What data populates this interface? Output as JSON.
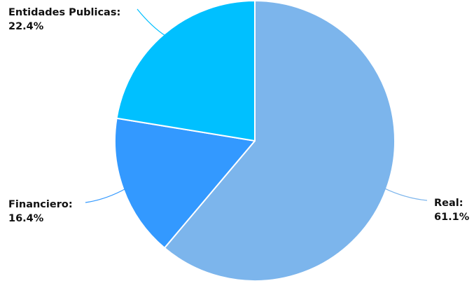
{
  "chart_data": {
    "type": "pie",
    "title": "",
    "start_angle_deg": 0,
    "direction": "clockwise",
    "slices": [
      {
        "name": "Real",
        "value": 61.1,
        "percent_label": "61.1%",
        "color": "#7cb5ec"
      },
      {
        "name": "Financiero",
        "value": 16.4,
        "percent_label": "16.4%",
        "color": "#3399ff"
      },
      {
        "name": "Entidades Publicas",
        "value": 22.4,
        "percent_label": "22.4%",
        "color": "#00c0ff"
      }
    ]
  },
  "colors": {
    "slice_border": "#ffffff",
    "label_text": "#111111"
  }
}
